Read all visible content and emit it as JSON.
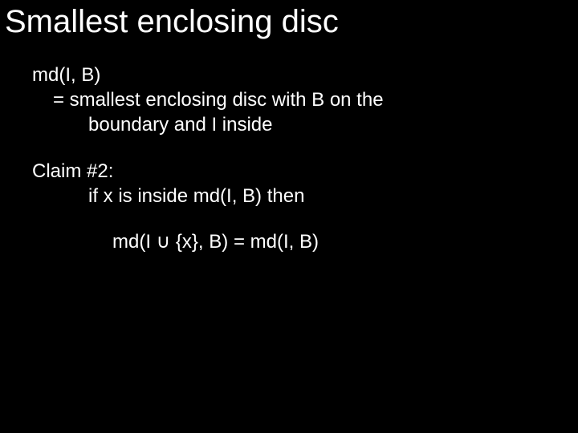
{
  "slide": {
    "title": "Smallest enclosing disc",
    "def_line1": "md(I, B)",
    "def_line2": "= smallest enclosing disc with B on the",
    "def_line3": "boundary and I inside",
    "claim_line1": "Claim #2:",
    "claim_line2": "if x is inside md(I, B) then",
    "formula": "md(I ∪ {x}, B) = md(I, B)",
    "background_color": "#000000",
    "text_color": "#ffffff",
    "title_fontsize": 40,
    "body_fontsize": 24
  }
}
